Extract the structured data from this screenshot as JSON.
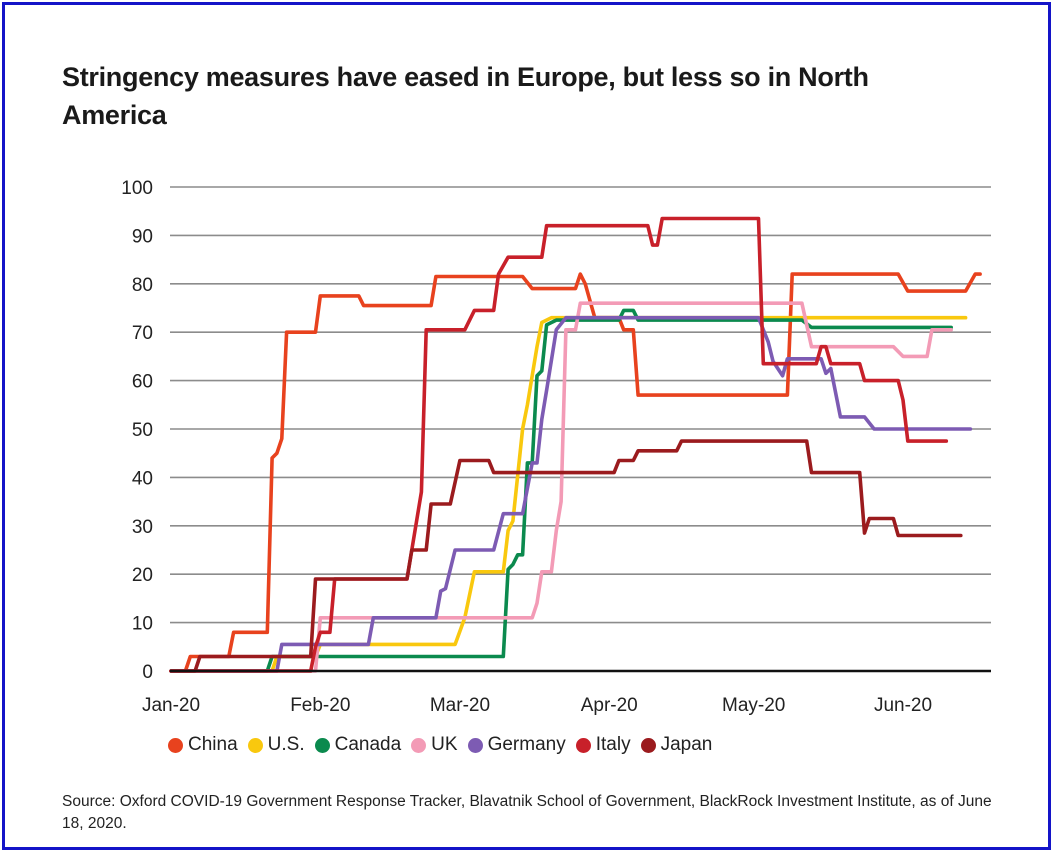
{
  "title": "Stringency measures have eased in Europe, but less so in North America",
  "source": "Source: Oxford COVID-19 Government Response Tracker, Blavatnik School of Government, BlackRock Investment Institute, as of June 18, 2020.",
  "chart_data": {
    "type": "line",
    "title": "Stringency measures have eased in Europe, but less so in North America",
    "xlabel": "",
    "ylabel": "",
    "x_unit": "days since Jan 1, 2020",
    "xlim": [
      0,
      168
    ],
    "ylim": [
      0,
      100
    ],
    "grid": true,
    "legend_position": "bottom",
    "y_ticks": [
      0,
      10,
      20,
      30,
      40,
      50,
      60,
      70,
      80,
      90,
      100
    ],
    "x_ticks": [
      {
        "label": "Jan-20",
        "x": 0
      },
      {
        "label": "Feb-20",
        "x": 31
      },
      {
        "label": "Mar-20",
        "x": 60
      },
      {
        "label": "Apr-20",
        "x": 91
      },
      {
        "label": "May-20",
        "x": 121
      },
      {
        "label": "Jun-20",
        "x": 152
      }
    ],
    "series": [
      {
        "name": "China",
        "color": "#E8421E",
        "points": [
          [
            0,
            0
          ],
          [
            3,
            0
          ],
          [
            4,
            3
          ],
          [
            12,
            3
          ],
          [
            13,
            8
          ],
          [
            20,
            8
          ],
          [
            21,
            44
          ],
          [
            22,
            45
          ],
          [
            23,
            48
          ],
          [
            24,
            70
          ],
          [
            30,
            70
          ],
          [
            31,
            77.5
          ],
          [
            39,
            77.5
          ],
          [
            40,
            75.5
          ],
          [
            54,
            75.5
          ],
          [
            55,
            81.5
          ],
          [
            73,
            81.5
          ],
          [
            75,
            79
          ],
          [
            84,
            79
          ],
          [
            85,
            82
          ],
          [
            86,
            80
          ],
          [
            88,
            73
          ],
          [
            93,
            73
          ],
          [
            94,
            70.5
          ],
          [
            96,
            70.5
          ],
          [
            97,
            57
          ],
          [
            128,
            57
          ],
          [
            129,
            82
          ],
          [
            151,
            82
          ],
          [
            153,
            78.5
          ],
          [
            165,
            78.5
          ],
          [
            167,
            82
          ],
          [
            168,
            82
          ]
        ]
      },
      {
        "name": "U.S.",
        "color": "#F9C80E",
        "points": [
          [
            0,
            0
          ],
          [
            21,
            0
          ],
          [
            22,
            3
          ],
          [
            30,
            3
          ],
          [
            31,
            5.5
          ],
          [
            59,
            5.5
          ],
          [
            61,
            11
          ],
          [
            63,
            20.5
          ],
          [
            69,
            20.5
          ],
          [
            70,
            29
          ],
          [
            71,
            31
          ],
          [
            73,
            50
          ],
          [
            74,
            55
          ],
          [
            76,
            67
          ],
          [
            77,
            72
          ],
          [
            79,
            73
          ],
          [
            165,
            73
          ]
        ]
      },
      {
        "name": "Canada",
        "color": "#0B8A4E",
        "points": [
          [
            0,
            0
          ],
          [
            20,
            0
          ],
          [
            21,
            3
          ],
          [
            69,
            3
          ],
          [
            70,
            21
          ],
          [
            71,
            22
          ],
          [
            72,
            24
          ],
          [
            73,
            24
          ],
          [
            74,
            43
          ],
          [
            75,
            43
          ],
          [
            76,
            61
          ],
          [
            77,
            62
          ],
          [
            78,
            71.5
          ],
          [
            80,
            72.5
          ],
          [
            93,
            72.5
          ],
          [
            94,
            74.5
          ],
          [
            96,
            74.5
          ],
          [
            97,
            72.5
          ],
          [
            131,
            72.5
          ],
          [
            133,
            71
          ],
          [
            162,
            71
          ]
        ]
      },
      {
        "name": "UK",
        "color": "#F39BB6",
        "points": [
          [
            0,
            0
          ],
          [
            30,
            0
          ],
          [
            31,
            11
          ],
          [
            75,
            11
          ],
          [
            76,
            14
          ],
          [
            77,
            20.5
          ],
          [
            79,
            20.5
          ],
          [
            80,
            29
          ],
          [
            81,
            35
          ],
          [
            82,
            70.5
          ],
          [
            84,
            70.5
          ],
          [
            85,
            76
          ],
          [
            131,
            76
          ],
          [
            133,
            67
          ],
          [
            150,
            67
          ],
          [
            152,
            65
          ],
          [
            157,
            65
          ],
          [
            158,
            70.5
          ],
          [
            162,
            70.5
          ]
        ]
      },
      {
        "name": "Germany",
        "color": "#7D5BB3",
        "points": [
          [
            0,
            0
          ],
          [
            22,
            0
          ],
          [
            23,
            5.5
          ],
          [
            41,
            5.5
          ],
          [
            42,
            11
          ],
          [
            55,
            11
          ],
          [
            56,
            16.5
          ],
          [
            57,
            17
          ],
          [
            59,
            25
          ],
          [
            67,
            25
          ],
          [
            69,
            32.5
          ],
          [
            73,
            32.5
          ],
          [
            75,
            43
          ],
          [
            76,
            43
          ],
          [
            77,
            52
          ],
          [
            78,
            58
          ],
          [
            80,
            70.5
          ],
          [
            82,
            73
          ],
          [
            122,
            73
          ],
          [
            124,
            68
          ],
          [
            125,
            64
          ],
          [
            127,
            61
          ],
          [
            128,
            64.5
          ],
          [
            135,
            64.5
          ],
          [
            136,
            61.5
          ],
          [
            137,
            62.5
          ],
          [
            139,
            52.5
          ],
          [
            144,
            52.5
          ],
          [
            146,
            50
          ],
          [
            166,
            50
          ]
        ]
      },
      {
        "name": "Italy",
        "color": "#C8202A",
        "points": [
          [
            0,
            0
          ],
          [
            29,
            0
          ],
          [
            30,
            5
          ],
          [
            31,
            8
          ],
          [
            33,
            8
          ],
          [
            34,
            19
          ],
          [
            49,
            19
          ],
          [
            50,
            25
          ],
          [
            52,
            37
          ],
          [
            53,
            70.5
          ],
          [
            61,
            70.5
          ],
          [
            63,
            74.5
          ],
          [
            67,
            74.5
          ],
          [
            68,
            82
          ],
          [
            70,
            85.5
          ],
          [
            77,
            85.5
          ],
          [
            78,
            92
          ],
          [
            99,
            92
          ],
          [
            100,
            88
          ],
          [
            101,
            88
          ],
          [
            102,
            93.5
          ],
          [
            122,
            93.5
          ],
          [
            123,
            63.5
          ],
          [
            134,
            63.5
          ],
          [
            135,
            67
          ],
          [
            136,
            67
          ],
          [
            137,
            63.5
          ],
          [
            143,
            63.5
          ],
          [
            144,
            60
          ],
          [
            151,
            60
          ],
          [
            152,
            56
          ],
          [
            153,
            47.5
          ],
          [
            161,
            47.5
          ]
        ]
      },
      {
        "name": "Japan",
        "color": "#9B1B1E",
        "points": [
          [
            0,
            0
          ],
          [
            5,
            0
          ],
          [
            6,
            3
          ],
          [
            29,
            3
          ],
          [
            30,
            19
          ],
          [
            49,
            19
          ],
          [
            50,
            25
          ],
          [
            53,
            25
          ],
          [
            54,
            34.5
          ],
          [
            58,
            34.5
          ],
          [
            60,
            43.5
          ],
          [
            66,
            43.5
          ],
          [
            67,
            41
          ],
          [
            92,
            41
          ],
          [
            93,
            43.5
          ],
          [
            96,
            43.5
          ],
          [
            97,
            45.5
          ],
          [
            105,
            45.5
          ],
          [
            106,
            47.5
          ],
          [
            132,
            47.5
          ],
          [
            133,
            41
          ],
          [
            143,
            41
          ],
          [
            144,
            28.5
          ],
          [
            145,
            31.5
          ],
          [
            150,
            31.5
          ],
          [
            151,
            28
          ],
          [
            164,
            28
          ]
        ]
      }
    ]
  }
}
